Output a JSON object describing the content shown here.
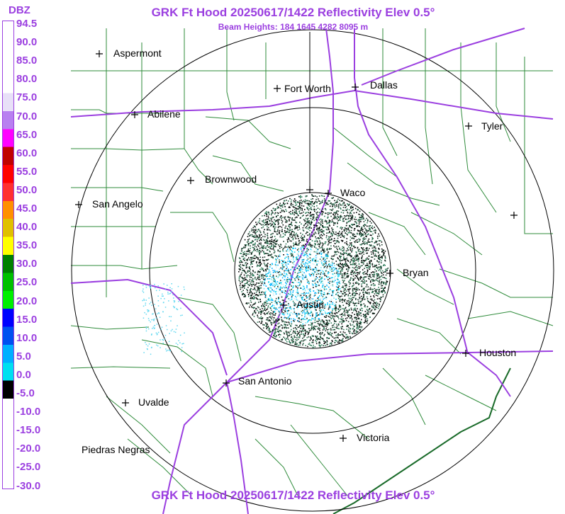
{
  "header": {
    "title": "GRK Ft Hood 20250617/1422 Reflectivity Elev 0.5°",
    "subtitle": "Beam Heights: 184 1645 4282 8095 m"
  },
  "footer": {
    "title": "GRK Ft Hood 20250617/1422 Reflectivity Elev 0.5°"
  },
  "legend": {
    "unit": "DBZ",
    "labels": [
      "94.5",
      "90.0",
      "85.0",
      "80.0",
      "75.0",
      "70.0",
      "65.0",
      "60.0",
      "55.0",
      "50.0",
      "45.0",
      "40.0",
      "35.0",
      "30.0",
      "25.0",
      "20.0",
      "15.0",
      "10.0",
      "5.0",
      "0.0",
      "-5.0",
      "-10.0",
      "-15.0",
      "-20.0",
      "-25.0",
      "-30.0"
    ],
    "colors": [
      "#ffffff",
      "#ffffff",
      "#ffffff",
      "#ffffff",
      "#e8e0f8",
      "#b880f0",
      "#ff00ff",
      "#c00000",
      "#ff0000",
      "#ff3030",
      "#ff9000",
      "#e0c000",
      "#ffff00",
      "#008000",
      "#00c000",
      "#00f000",
      "#0000ff",
      "#0050f0",
      "#00b0ff",
      "#00e0f0",
      "#000000",
      "#ffffff",
      "#ffffff",
      "#ffffff",
      "#ffffff",
      "#ffffff"
    ]
  },
  "cities": [
    {
      "name": "Aspermont"
    },
    {
      "name": "Fort Worth"
    },
    {
      "name": "Dallas"
    },
    {
      "name": "Abilene"
    },
    {
      "name": "Tyler"
    },
    {
      "name": "Brownwood"
    },
    {
      "name": "Waco"
    },
    {
      "name": "San Angelo"
    },
    {
      "name": "Bryan"
    },
    {
      "name": "Austin"
    },
    {
      "name": "Houston"
    },
    {
      "name": "San Antonio"
    },
    {
      "name": "Uvalde"
    },
    {
      "name": "Victoria"
    },
    {
      "name": "Piedras Negras"
    }
  ]
}
